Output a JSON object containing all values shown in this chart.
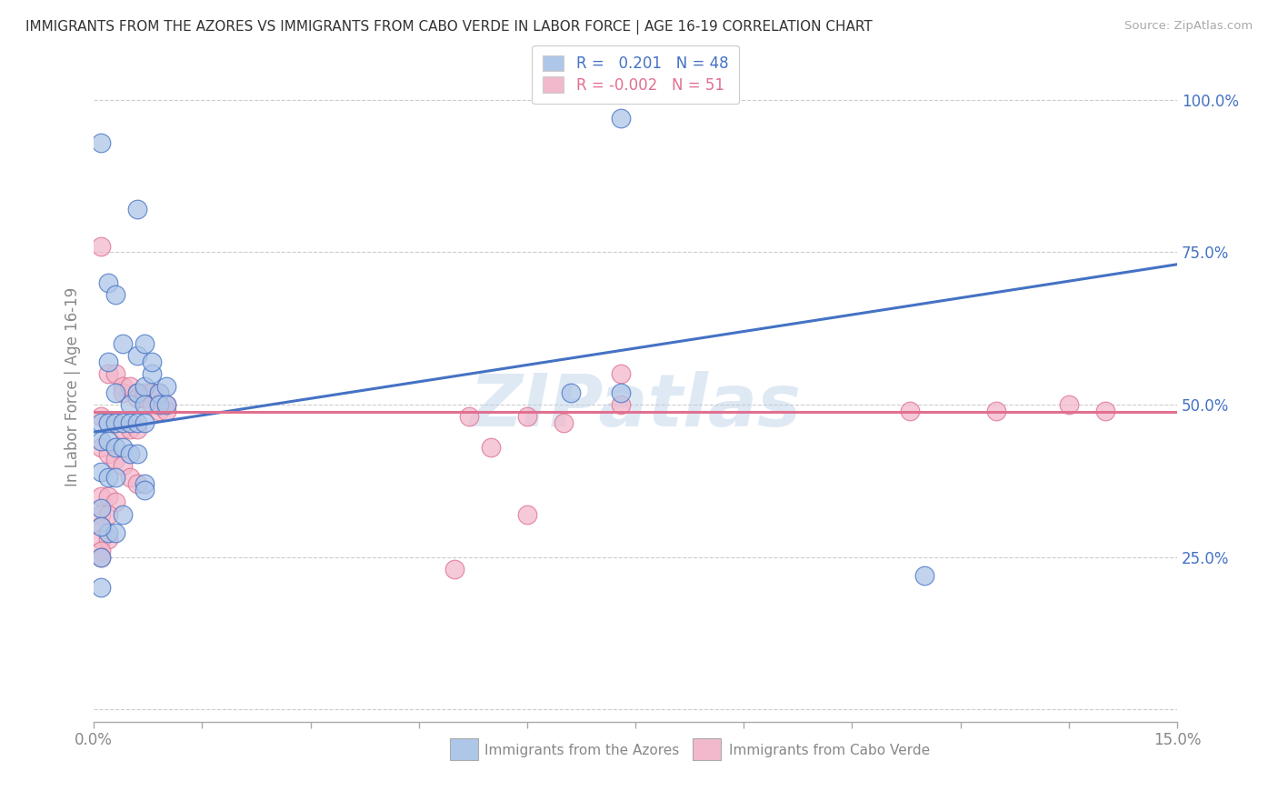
{
  "title": "IMMIGRANTS FROM THE AZORES VS IMMIGRANTS FROM CABO VERDE IN LABOR FORCE | AGE 16-19 CORRELATION CHART",
  "source": "Source: ZipAtlas.com",
  "ylabel": "In Labor Force | Age 16-19",
  "xlabel_blue": "Immigrants from the Azores",
  "xlabel_pink": "Immigrants from Cabo Verde",
  "r_blue": 0.201,
  "n_blue": 48,
  "r_pink": -0.002,
  "n_pink": 51,
  "xlim": [
    0.0,
    0.15
  ],
  "ylim": [
    -0.02,
    1.08
  ],
  "ytick_vals": [
    0.0,
    0.25,
    0.5,
    0.75,
    1.0
  ],
  "ytick_labels": [
    "",
    "25.0%",
    "50.0%",
    "75.0%",
    "100.0%"
  ],
  "xtick_vals": [
    0.0,
    0.015,
    0.03,
    0.045,
    0.06,
    0.075,
    0.09,
    0.105,
    0.12,
    0.135,
    0.15
  ],
  "xtick_labels": [
    "0.0%",
    "",
    "",
    "",
    "",
    "",
    "",
    "",
    "",
    "",
    "15.0%"
  ],
  "blue_color": "#aec6e8",
  "pink_color": "#f2b8cb",
  "line_blue": "#4472c4",
  "line_pink": "#e07090",
  "watermark": "ZIPatlas",
  "blue_line_y0": 0.455,
  "blue_line_y1": 0.73,
  "pink_line_y": 0.488,
  "blue_points": [
    [
      0.001,
      0.93
    ],
    [
      0.002,
      0.7
    ],
    [
      0.006,
      0.82
    ],
    [
      0.003,
      0.68
    ],
    [
      0.004,
      0.6
    ],
    [
      0.002,
      0.57
    ],
    [
      0.006,
      0.58
    ],
    [
      0.007,
      0.6
    ],
    [
      0.003,
      0.52
    ],
    [
      0.005,
      0.5
    ],
    [
      0.006,
      0.52
    ],
    [
      0.007,
      0.53
    ],
    [
      0.007,
      0.5
    ],
    [
      0.008,
      0.55
    ],
    [
      0.008,
      0.57
    ],
    [
      0.009,
      0.52
    ],
    [
      0.009,
      0.5
    ],
    [
      0.01,
      0.53
    ],
    [
      0.01,
      0.5
    ],
    [
      0.001,
      0.47
    ],
    [
      0.002,
      0.47
    ],
    [
      0.003,
      0.47
    ],
    [
      0.004,
      0.47
    ],
    [
      0.005,
      0.47
    ],
    [
      0.006,
      0.47
    ],
    [
      0.007,
      0.47
    ],
    [
      0.001,
      0.44
    ],
    [
      0.002,
      0.44
    ],
    [
      0.003,
      0.43
    ],
    [
      0.004,
      0.43
    ],
    [
      0.005,
      0.42
    ],
    [
      0.006,
      0.42
    ],
    [
      0.001,
      0.39
    ],
    [
      0.002,
      0.38
    ],
    [
      0.003,
      0.38
    ],
    [
      0.001,
      0.33
    ],
    [
      0.002,
      0.29
    ],
    [
      0.003,
      0.29
    ],
    [
      0.007,
      0.37
    ],
    [
      0.007,
      0.36
    ],
    [
      0.004,
      0.32
    ],
    [
      0.001,
      0.3
    ],
    [
      0.001,
      0.25
    ],
    [
      0.001,
      0.2
    ],
    [
      0.066,
      0.52
    ],
    [
      0.073,
      0.52
    ],
    [
      0.073,
      0.97
    ],
    [
      0.115,
      0.22
    ]
  ],
  "pink_points": [
    [
      0.001,
      0.76
    ],
    [
      0.002,
      0.55
    ],
    [
      0.003,
      0.55
    ],
    [
      0.004,
      0.53
    ],
    [
      0.004,
      0.52
    ],
    [
      0.005,
      0.53
    ],
    [
      0.006,
      0.52
    ],
    [
      0.006,
      0.51
    ],
    [
      0.007,
      0.52
    ],
    [
      0.007,
      0.51
    ],
    [
      0.008,
      0.52
    ],
    [
      0.008,
      0.5
    ],
    [
      0.009,
      0.52
    ],
    [
      0.009,
      0.5
    ],
    [
      0.009,
      0.49
    ],
    [
      0.01,
      0.5
    ],
    [
      0.01,
      0.49
    ],
    [
      0.001,
      0.48
    ],
    [
      0.002,
      0.47
    ],
    [
      0.003,
      0.47
    ],
    [
      0.004,
      0.46
    ],
    [
      0.005,
      0.46
    ],
    [
      0.006,
      0.46
    ],
    [
      0.001,
      0.43
    ],
    [
      0.002,
      0.42
    ],
    [
      0.003,
      0.41
    ],
    [
      0.004,
      0.4
    ],
    [
      0.005,
      0.38
    ],
    [
      0.006,
      0.37
    ],
    [
      0.001,
      0.35
    ],
    [
      0.002,
      0.35
    ],
    [
      0.003,
      0.34
    ],
    [
      0.001,
      0.32
    ],
    [
      0.002,
      0.32
    ],
    [
      0.001,
      0.3
    ],
    [
      0.001,
      0.28
    ],
    [
      0.002,
      0.28
    ],
    [
      0.001,
      0.26
    ],
    [
      0.001,
      0.25
    ],
    [
      0.06,
      0.48
    ],
    [
      0.055,
      0.43
    ],
    [
      0.052,
      0.48
    ],
    [
      0.073,
      0.55
    ],
    [
      0.073,
      0.5
    ],
    [
      0.065,
      0.47
    ],
    [
      0.06,
      0.32
    ],
    [
      0.113,
      0.49
    ],
    [
      0.125,
      0.49
    ],
    [
      0.135,
      0.5
    ],
    [
      0.14,
      0.49
    ],
    [
      0.05,
      0.23
    ]
  ]
}
